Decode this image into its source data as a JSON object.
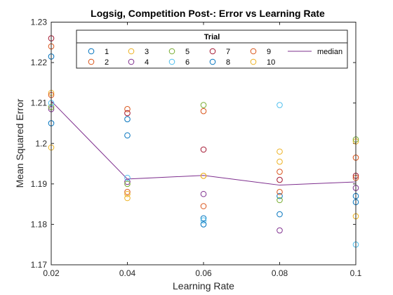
{
  "chart_data": {
    "type": "scatter",
    "title": "Logsig, Competition Post-: Error vs Learning Rate",
    "xlabel": "Learning Rate",
    "ylabel": "Mean Squared Error",
    "xlim": [
      0.02,
      0.1
    ],
    "ylim": [
      1.17,
      1.23
    ],
    "xticks": [
      "0.02",
      "0.04",
      "0.06",
      "0.08",
      "0.1"
    ],
    "yticks": [
      "1.17",
      "1.18",
      "1.19",
      "1.2",
      "1.21",
      "1.22",
      "1.23"
    ],
    "x": [
      0.02,
      0.04,
      0.06,
      0.08,
      0.1
    ],
    "legend": {
      "title": "Trial",
      "placement": "top"
    },
    "series": [
      {
        "name": "1",
        "color": "#0072BD",
        "values": [
          1.2215,
          1.202,
          1.1815,
          1.187,
          1.187
        ]
      },
      {
        "name": "2",
        "color": "#D95319",
        "values": [
          1.224,
          1.188,
          1.1845,
          1.193,
          1.1965
        ]
      },
      {
        "name": "3",
        "color": "#EDB120",
        "values": [
          1.2125,
          1.1875,
          1.192,
          1.198,
          1.2005
        ]
      },
      {
        "name": "4",
        "color": "#7E2F8E",
        "values": [
          1.2085,
          1.1905,
          1.1875,
          1.1785,
          1.189
        ]
      },
      {
        "name": "5",
        "color": "#77AC30",
        "values": [
          1.209,
          1.19,
          1.2095,
          1.186,
          1.201
        ]
      },
      {
        "name": "6",
        "color": "#4DBEEE",
        "values": [
          1.21,
          1.1915,
          1.181,
          1.2095,
          1.175
        ]
      },
      {
        "name": "7",
        "color": "#A2142F",
        "values": [
          1.226,
          1.2075,
          1.1985,
          1.191,
          1.192
        ]
      },
      {
        "name": "8",
        "color": "#0072BD",
        "values": [
          1.205,
          1.206,
          1.18,
          1.1825,
          1.1855
        ]
      },
      {
        "name": "9",
        "color": "#D95319",
        "values": [
          1.212,
          1.2085,
          1.208,
          1.188,
          1.1915
        ]
      },
      {
        "name": "10",
        "color": "#EDB120",
        "values": [
          1.199,
          1.1865,
          1.192,
          1.1955,
          1.182
        ]
      }
    ],
    "median": {
      "name": "median",
      "color": "#7E2F8E",
      "values": [
        1.2105,
        1.1912,
        1.1921,
        1.1897,
        1.1905
      ]
    }
  }
}
